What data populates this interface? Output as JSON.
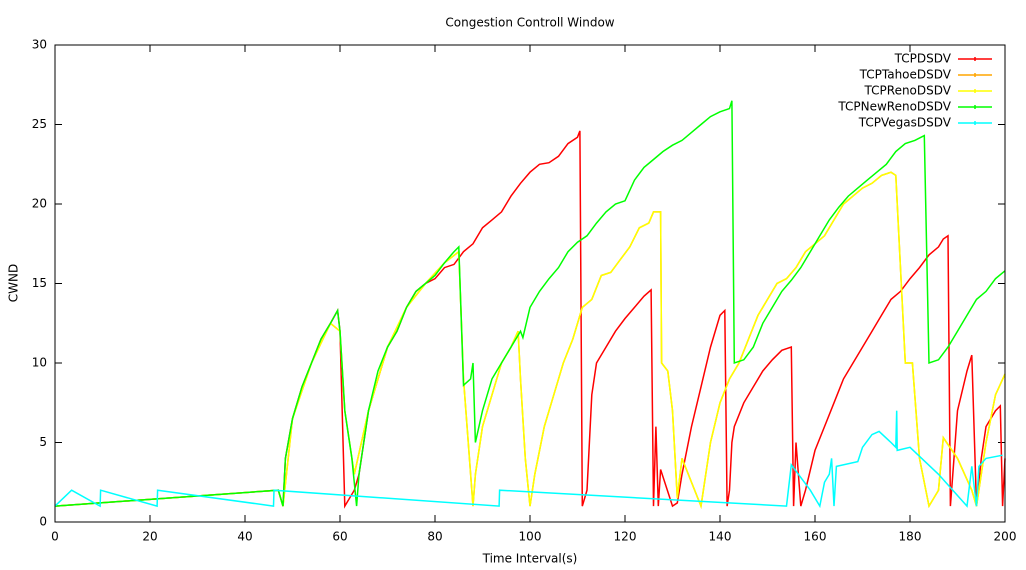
{
  "chart_data": {
    "type": "line",
    "title": "Congestion Controll Window",
    "x_label": "Time Interval(s)",
    "y_label": "CWND",
    "xlim": [
      0,
      200
    ],
    "xticks": [
      0,
      20,
      40,
      60,
      80,
      100,
      120,
      140,
      160,
      180,
      200
    ],
    "ylim": [
      0,
      30
    ],
    "yticks": [
      0,
      5,
      10,
      15,
      20,
      25,
      30
    ],
    "grid": false,
    "legend": "upper right",
    "series": [
      {
        "name": "TCPDSDV",
        "color": "#ff0000",
        "x": [
          0,
          47,
          48,
          48.5,
          50,
          52,
          54,
          56,
          58,
          59.5,
          60,
          61,
          63,
          64,
          66,
          68,
          70,
          72,
          74,
          76,
          78,
          80,
          82,
          84,
          86,
          88,
          90,
          92,
          94,
          96,
          98,
          100,
          102,
          104,
          106,
          108,
          110,
          110.5,
          111,
          112,
          113,
          114,
          116,
          118,
          120,
          122,
          124,
          125.5,
          126,
          126.5,
          127,
          127.5,
          130,
          131,
          132,
          134,
          136,
          138,
          140,
          141,
          141.5,
          142,
          142.5,
          143,
          145,
          147,
          149,
          151,
          153,
          155,
          155.5,
          156,
          157,
          158,
          160,
          162,
          164,
          166,
          168,
          170,
          172,
          174,
          176,
          178,
          180,
          182,
          184,
          186,
          187,
          188,
          188.5,
          189,
          190,
          192,
          193,
          194,
          195,
          196,
          198,
          199,
          199.5,
          200
        ],
        "values": [
          1,
          2,
          1,
          4,
          6.5,
          8.5,
          10,
          11.5,
          12.5,
          13.3,
          12,
          1,
          2,
          3,
          7,
          9,
          11,
          12,
          13.5,
          14.5,
          15,
          15.3,
          16,
          16.2,
          17,
          17.5,
          18.5,
          19,
          19.5,
          20.5,
          21.3,
          22,
          22.5,
          22.6,
          23,
          23.8,
          24.2,
          24.6,
          1,
          2,
          8,
          10,
          11,
          12,
          12.8,
          13.5,
          14.2,
          14.6,
          1,
          6,
          1,
          3.3,
          1,
          1.2,
          3,
          6,
          8.5,
          11,
          13,
          13.3,
          1,
          2,
          5,
          6,
          7.5,
          8.5,
          9.5,
          10.2,
          10.8,
          11,
          1,
          5,
          1,
          2,
          4.5,
          6,
          7.5,
          9,
          10,
          11,
          12,
          13,
          14,
          14.5,
          15.3,
          16,
          16.8,
          17.3,
          17.8,
          18,
          1,
          3,
          7,
          9.5,
          10.5,
          1,
          4,
          6,
          7,
          7.3,
          1,
          4
        ]
      },
      {
        "name": "TCPTahoeDSDV",
        "color": "#ffa500",
        "x": [
          0,
          47,
          48,
          50,
          54,
          58,
          60,
          61,
          63,
          66,
          70,
          74,
          78,
          82,
          85,
          86,
          88,
          88.5,
          90,
          92,
          94,
          96,
          97.5,
          98,
          99,
          100,
          101,
          103,
          105,
          107,
          109,
          111,
          113,
          115,
          117,
          119,
          121,
          123,
          125,
          126,
          127.5,
          127.7,
          129,
          130,
          131,
          132,
          136,
          138,
          140,
          142,
          144,
          146,
          148,
          150,
          152,
          154,
          156,
          158,
          160,
          162,
          164,
          166,
          168,
          170,
          172,
          174,
          176,
          177,
          179,
          180.5,
          182,
          184,
          186,
          187,
          190,
          193,
          194,
          196,
          198,
          200
        ],
        "values": [
          1,
          2,
          1,
          6.5,
          10,
          12.5,
          12,
          7,
          3,
          7,
          11,
          13.5,
          15,
          16.3,
          17,
          9,
          1,
          3,
          6,
          8,
          10,
          11,
          12,
          9,
          4,
          1,
          3,
          6,
          8,
          10,
          11.5,
          13.5,
          14,
          15.5,
          15.7,
          16.5,
          17.3,
          18.5,
          18.8,
          19.5,
          19.5,
          10,
          9.5,
          7,
          1.5,
          4,
          1,
          5,
          7.5,
          9,
          10,
          11.5,
          13,
          14,
          15,
          15.3,
          16,
          17,
          17.5,
          18,
          19,
          20,
          20.5,
          21,
          21.3,
          21.8,
          22,
          21.8,
          10,
          10,
          4,
          1,
          2,
          5.3,
          4,
          2,
          1,
          5,
          8,
          9.3
        ]
      },
      {
        "name": "TCPRenoDSDV",
        "color": "#ffff00",
        "x": [
          0,
          47,
          48,
          50,
          54,
          58,
          60,
          61,
          63,
          66,
          70,
          74,
          78,
          82,
          85,
          86,
          88,
          88.5,
          90,
          92,
          94,
          96,
          97.5,
          98,
          99,
          100,
          101,
          103,
          105,
          107,
          109,
          111,
          113,
          115,
          117,
          119,
          121,
          123,
          125,
          126,
          127.5,
          127.7,
          129,
          130,
          131,
          132,
          136,
          138,
          140,
          142,
          144,
          146,
          148,
          150,
          152,
          154,
          156,
          158,
          160,
          162,
          164,
          166,
          168,
          170,
          172,
          174,
          176,
          177,
          179,
          180.5,
          182,
          184,
          186,
          187,
          190,
          193,
          194,
          196,
          198,
          200
        ],
        "values": [
          1,
          2,
          1,
          6.5,
          10,
          12.5,
          12,
          7,
          3,
          7,
          11,
          13.5,
          15,
          16.3,
          17,
          9,
          1,
          3,
          6,
          8,
          10,
          11,
          12,
          9,
          4,
          1,
          3,
          6,
          8,
          10,
          11.5,
          13.5,
          14,
          15.5,
          15.7,
          16.5,
          17.3,
          18.5,
          18.8,
          19.5,
          19.5,
          10,
          9.5,
          7,
          1.5,
          4,
          1,
          5,
          7.5,
          9,
          10,
          11.5,
          13,
          14,
          15,
          15.3,
          16,
          17,
          17.5,
          18,
          19,
          20,
          20.5,
          21,
          21.3,
          21.8,
          22,
          21.8,
          10,
          10,
          4,
          1,
          2,
          5.3,
          4,
          2,
          1,
          5,
          8,
          9.3
        ]
      },
      {
        "name": "TCPNewRenoDSDV",
        "color": "#00ff00",
        "x": [
          0,
          47,
          48,
          48.5,
          50,
          52,
          54,
          56,
          58,
          59.5,
          60,
          61,
          62.5,
          63.5,
          64,
          66,
          68,
          70,
          72,
          74,
          76,
          78,
          80,
          82,
          84,
          85,
          86,
          87.5,
          88,
          88.5,
          90,
          92,
          94,
          96,
          98,
          98.5,
          100,
          102,
          104,
          106,
          108,
          110,
          112,
          114,
          116,
          118,
          120,
          122,
          124,
          126,
          128,
          130,
          132,
          134,
          136,
          138,
          140,
          142,
          142.5,
          143,
          145,
          147,
          149,
          151,
          153,
          155,
          157,
          159,
          161,
          163,
          165,
          167,
          169,
          171,
          173,
          175,
          177,
          179,
          181,
          183,
          184,
          186,
          188,
          190,
          192,
          194,
          196,
          198,
          200
        ],
        "values": [
          1,
          2,
          1,
          4,
          6.5,
          8.5,
          10,
          11.5,
          12.5,
          13.3,
          12,
          7,
          4,
          1,
          3,
          7,
          9.5,
          11,
          12,
          13.5,
          14.5,
          15,
          15.5,
          16.3,
          17,
          17.3,
          8.6,
          9,
          10,
          5,
          7,
          9,
          10,
          11,
          12,
          11.6,
          13.5,
          14.5,
          15.3,
          16,
          17,
          17.6,
          18,
          18.8,
          19.5,
          20,
          20.2,
          21.5,
          22.3,
          22.8,
          23.3,
          23.7,
          24,
          24.5,
          25,
          25.5,
          25.8,
          26,
          26.5,
          10,
          10.2,
          11,
          12.5,
          13.5,
          14.5,
          15.2,
          16,
          17,
          18,
          19,
          19.8,
          20.5,
          21,
          21.5,
          22,
          22.5,
          23.3,
          23.8,
          24,
          24.3,
          10,
          10.2,
          11,
          12,
          13,
          14,
          14.5,
          15.3,
          15.8
        ]
      },
      {
        "name": "TCPVegasDSDV",
        "color": "#00ffff",
        "x": [
          0,
          3.5,
          9.5,
          9.6,
          21.5,
          21.6,
          46,
          46.1,
          93.5,
          93.6,
          154,
          155,
          159,
          161,
          162,
          163,
          163.5,
          164,
          164.5,
          169,
          170,
          172,
          173.5,
          176,
          177,
          177.2,
          177.3,
          180,
          186,
          192,
          193,
          194,
          194.5,
          196,
          199.5
        ],
        "values": [
          1,
          2,
          1,
          2,
          1,
          2,
          1,
          2,
          1,
          2,
          1,
          3.6,
          2,
          1,
          2.5,
          3,
          4,
          1,
          3.5,
          3.8,
          4.7,
          5.5,
          5.7,
          5,
          4.7,
          7,
          4.5,
          4.7,
          3,
          1,
          3.5,
          1,
          3.5,
          4,
          4.2
        ]
      }
    ]
  }
}
